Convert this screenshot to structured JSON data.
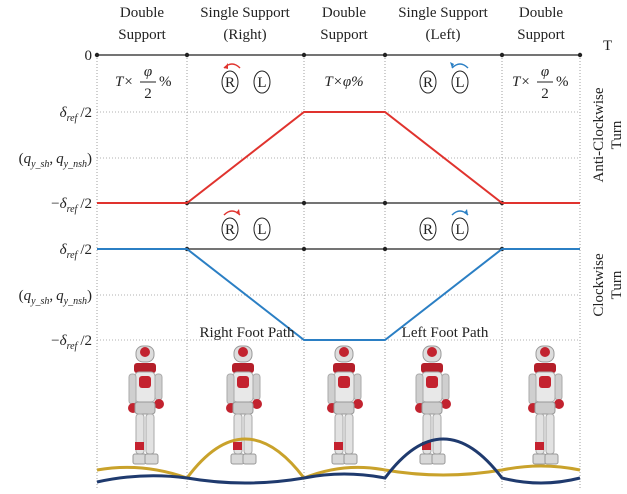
{
  "phases": [
    {
      "line1": "Double",
      "line2": "Support"
    },
    {
      "line1": "Single Support",
      "line2": "(Right)"
    },
    {
      "line1": "Double",
      "line2": "Support"
    },
    {
      "line1": "Single Support",
      "line2": "(Left)"
    },
    {
      "line1": "Double",
      "line2": "Support"
    }
  ],
  "axis": {
    "origin": "0",
    "end": "T"
  },
  "rows": {
    "upper": {
      "high": {
        "symbol": "δ",
        "sub": "ref",
        "suffix": "/2"
      },
      "mid": {
        "open": "(",
        "var1": "q",
        "sub1": "y_sh",
        "sep": ",",
        "var2": "q",
        "sub2": "y_nsh",
        "close": ")"
      },
      "low": {
        "prefix": "−",
        "symbol": "δ",
        "sub": "ref",
        "suffix": "/2"
      }
    },
    "lower": {
      "high": {
        "symbol": "δ",
        "sub": "ref",
        "suffix": "/2"
      },
      "mid": {
        "open": "(",
        "var1": "q",
        "sub1": "y_sh",
        "sep": ",",
        "var2": "q",
        "sub2": "y_nsh",
        "close": ")"
      },
      "low": {
        "prefix": "−",
        "symbol": "δ",
        "sub": "ref",
        "suffix": "/2"
      }
    }
  },
  "side_labels": [
    {
      "line1": "Anti-Clockwise",
      "line2": "Turn"
    },
    {
      "line1": "Clockwise",
      "line2": "Turn"
    }
  ],
  "durations": [
    {
      "prefix": "T×",
      "numerator": "φ",
      "denominator": "2",
      "suffix": "%"
    },
    {
      "text": "T×φ%"
    },
    {
      "prefix": "T×",
      "numerator": "φ",
      "denominator": "2",
      "suffix": "%"
    }
  ],
  "feet": {
    "anticlockwise": [
      [
        "R",
        "L"
      ],
      [
        "R",
        "L"
      ]
    ],
    "clockwise": [
      [
        "R",
        "L"
      ],
      [
        "R",
        "L"
      ]
    ]
  },
  "paths": {
    "right": "Right Foot Path",
    "left": "Left Foot Path"
  }
}
